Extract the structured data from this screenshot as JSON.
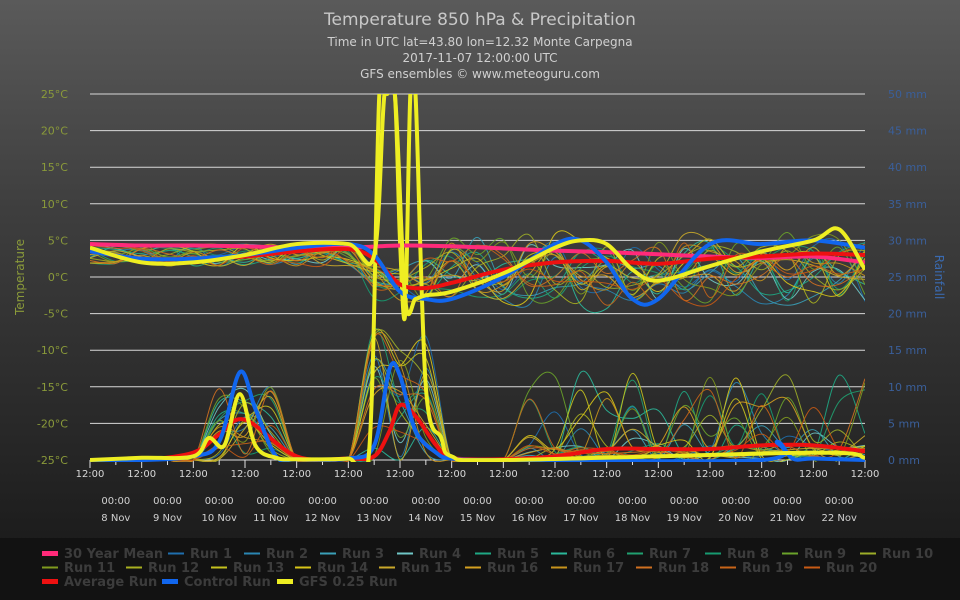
{
  "chart_data": {
    "type": "line",
    "title": "Temperature 850 hPa & Precipitation",
    "subtitles": [
      "Time in UTC lat=43.80 lon=12.32 Monte Carpegna",
      "2017-11-07 12:00:00 UTC",
      "GFS ensembles © www.meteoguru.com"
    ],
    "ylabel_left": "Temperature",
    "ylabel_right": "Rainfall",
    "ylim_left": [
      -25,
      25
    ],
    "ylim_right": [
      0,
      50
    ],
    "yticks_left": [
      "25°C",
      "20°C",
      "15°C",
      "10°C",
      "5°C",
      "0°C",
      "-5°C",
      "-10°C",
      "-15°C",
      "-20°C",
      "-25°C"
    ],
    "yticks_right": [
      "50 mm",
      "45 mm",
      "40 mm",
      "35 mm",
      "30 mm",
      "25 mm",
      "20 mm",
      "15 mm",
      "10 mm",
      "5 mm",
      "0 mm"
    ],
    "xticks_hour": [
      "12:00",
      "12:00",
      "12:00",
      "12:00",
      "12:00",
      "12:00",
      "12:00",
      "12:00",
      "12:00",
      "12:00",
      "12:00",
      "12:00",
      "12:00",
      "12:00",
      "12:00",
      "12:00"
    ],
    "xticks_midnight": [
      "00:00",
      "00:00",
      "00:00",
      "00:00",
      "00:00",
      "00:00",
      "00:00",
      "00:00",
      "00:00",
      "00:00",
      "00:00",
      "00:00",
      "00:00",
      "00:00",
      "00:00"
    ],
    "xdates": [
      "8 Nov",
      "9 Nov",
      "10 Nov",
      "11 Nov",
      "12 Nov",
      "13 Nov",
      "14 Nov",
      "15 Nov",
      "16 Nov",
      "17 Nov",
      "18 Nov",
      "19 Nov",
      "20 Nov",
      "21 Nov",
      "22 Nov"
    ],
    "x_unit": "days since 2017-11-07 12:00 UTC",
    "xlim": [
      0,
      15
    ],
    "grid": true,
    "legend_placement": "bottom",
    "legend": [
      {
        "name": "30 Year Mean",
        "color": "#ff2a7a"
      },
      {
        "name": "Run 1",
        "color": "#1f6fae"
      },
      {
        "name": "Run 2",
        "color": "#2a86b3"
      },
      {
        "name": "Run 3",
        "color": "#3aa0b8"
      },
      {
        "name": "Run 4",
        "color": "#6fc6c6"
      },
      {
        "name": "Run 5",
        "color": "#1fa884"
      },
      {
        "name": "Run 6",
        "color": "#2bb89a"
      },
      {
        "name": "Run 7",
        "color": "#20a070"
      },
      {
        "name": "Run 8",
        "color": "#179a70"
      },
      {
        "name": "Run 9",
        "color": "#6aa32a"
      },
      {
        "name": "Run 10",
        "color": "#9cad28"
      },
      {
        "name": "Run 11",
        "color": "#7f9a1e"
      },
      {
        "name": "Run 12",
        "color": "#a8b020"
      },
      {
        "name": "Run 13",
        "color": "#c5c21e"
      },
      {
        "name": "Run 14",
        "color": "#d8c518"
      },
      {
        "name": "Run 15",
        "color": "#c9a82a"
      },
      {
        "name": "Run 16",
        "color": "#d4a020"
      },
      {
        "name": "Run 17",
        "color": "#c8941c"
      },
      {
        "name": "Run 18",
        "color": "#d07020"
      },
      {
        "name": "Run 19",
        "color": "#c86418"
      },
      {
        "name": "Run 20",
        "color": "#c85a14"
      },
      {
        "name": "Average Run",
        "color": "#ee1111"
      },
      {
        "name": "Control Run",
        "color": "#1166ee"
      },
      {
        "name": "GFS 0.25 Run",
        "color": "#eeee22"
      }
    ],
    "temperature_series": [
      {
        "name": "30 Year Mean",
        "x": [
          0,
          1,
          2,
          3,
          4,
          5,
          6,
          7,
          8,
          9,
          10,
          11,
          12,
          13,
          14,
          15
        ],
        "values": [
          4.5,
          4.3,
          4.3,
          4.2,
          4.0,
          4.0,
          4.3,
          4.2,
          3.9,
          3.6,
          3.4,
          3.1,
          2.8,
          2.6,
          2.8,
          2.0
        ]
      },
      {
        "name": "Average Run",
        "x": [
          0,
          1,
          2,
          3,
          4,
          5,
          5.5,
          6,
          6.5,
          7,
          8,
          9,
          10,
          11,
          12,
          13,
          14,
          15
        ],
        "values": [
          3.5,
          2.5,
          2.5,
          2.8,
          3.5,
          3.8,
          2.5,
          -1.0,
          -1.5,
          -0.8,
          1.0,
          2.0,
          2.2,
          1.8,
          2.5,
          2.8,
          3.2,
          3.0
        ]
      },
      {
        "name": "Control Run",
        "x": [
          0,
          1,
          2,
          3,
          4,
          5,
          5.5,
          6,
          6.5,
          7,
          8,
          9,
          9.5,
          10,
          10.5,
          11,
          12,
          13,
          14,
          15
        ],
        "values": [
          3.5,
          2.5,
          2.5,
          3.0,
          4.0,
          4.5,
          3.0,
          -2.0,
          -3.0,
          -3.0,
          0.0,
          4.5,
          5.0,
          2.0,
          -3.0,
          -3.0,
          4.5,
          4.5,
          5.0,
          4.0
        ]
      },
      {
        "name": "GFS 0.25 Run",
        "x": [
          0,
          1,
          2,
          3,
          4,
          5,
          5.5,
          5.7,
          5.9,
          6.1,
          6.3,
          6.5,
          7,
          8,
          9,
          9.5,
          10,
          10.5,
          11,
          12,
          13,
          14,
          14.5,
          15
        ],
        "values": [
          4.0,
          2.0,
          2.0,
          3.0,
          4.5,
          4.5,
          3.0,
          25,
          25,
          -3.0,
          -3.0,
          -2.5,
          -2.0,
          0.5,
          4.0,
          5.0,
          4.5,
          1.0,
          -0.5,
          1.5,
          3.5,
          5.0,
          6.5,
          1.0
        ]
      }
    ],
    "rainfall_series": [
      {
        "name": "Average Run",
        "x": [
          0,
          1,
          2,
          2.5,
          3,
          4,
          5,
          5.5,
          5.8,
          6,
          6.3,
          6.7,
          7,
          8,
          9,
          10,
          11,
          12,
          13,
          14,
          15
        ],
        "values": [
          0,
          0,
          1,
          3.5,
          5.5,
          0.5,
          0.2,
          0.5,
          4.0,
          7.5,
          6,
          2,
          0.3,
          0.1,
          0.5,
          1.5,
          1.5,
          1.5,
          2.0,
          2.0,
          1.2
        ]
      },
      {
        "name": "Control Run",
        "x": [
          0,
          1,
          2,
          2.5,
          2.9,
          3.2,
          3.6,
          4,
          5,
          5.5,
          5.8,
          6,
          6.3,
          6.7,
          7,
          8,
          13,
          13.3,
          13.6,
          14,
          15
        ],
        "values": [
          0,
          0,
          0.5,
          2.5,
          12.0,
          7,
          0.5,
          0.1,
          0.2,
          2,
          12.5,
          11.5,
          4,
          1,
          0.2,
          0,
          0,
          2.5,
          0.2,
          0.2,
          0
        ]
      },
      {
        "name": "GFS 0.25 Run",
        "x": [
          0,
          1,
          2,
          2.3,
          2.6,
          2.9,
          3.2,
          3.6,
          4,
          5,
          5.4,
          5.6,
          5.75,
          5.9,
          6.0,
          6.1,
          6.2,
          6.3,
          6.5,
          6.8,
          7,
          8,
          14,
          15
        ],
        "values": [
          0,
          0.3,
          0.5,
          3,
          2,
          9,
          2,
          0.3,
          0.1,
          0.2,
          1,
          50,
          50,
          50,
          30,
          20,
          50,
          50,
          10,
          3,
          0.5,
          0,
          1,
          0.3
        ]
      }
    ]
  }
}
